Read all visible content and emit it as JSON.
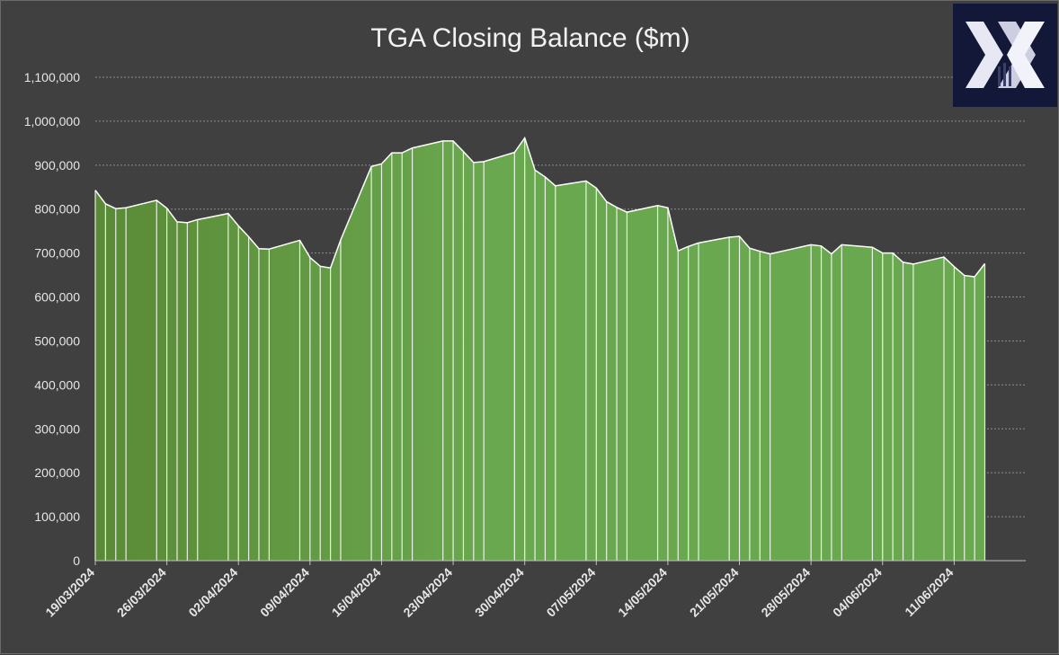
{
  "chart_data": {
    "type": "area",
    "title": "TGA Closing Balance ($m)",
    "xlabel": "",
    "ylabel": "",
    "ylim": [
      0,
      1100000
    ],
    "yticks": [
      0,
      100000,
      200000,
      300000,
      400000,
      500000,
      600000,
      700000,
      800000,
      900000,
      1000000,
      1100000
    ],
    "ytick_labels": [
      "0",
      "100,000",
      "200,000",
      "300,000",
      "400,000",
      "500,000",
      "600,000",
      "700,000",
      "800,000",
      "900,000",
      "1,000,000",
      "1,100,000"
    ],
    "xlim": [
      "2024-03-19",
      "2024-06-18"
    ],
    "xticks": [
      "2024-03-19",
      "2024-03-26",
      "2024-04-02",
      "2024-04-09",
      "2024-04-16",
      "2024-04-23",
      "2024-04-30",
      "2024-05-07",
      "2024-05-14",
      "2024-05-21",
      "2024-05-28",
      "2024-06-04",
      "2024-06-11"
    ],
    "xtick_labels": [
      "19/03/2024",
      "26/03/2024",
      "02/04/2024",
      "09/04/2024",
      "16/04/2024",
      "23/04/2024",
      "30/04/2024",
      "07/05/2024",
      "14/05/2024",
      "21/05/2024",
      "28/05/2024",
      "04/06/2024",
      "11/06/2024"
    ],
    "grid": true,
    "fill_color": "#6aa84f",
    "line_color": "#ffffff",
    "series": [
      {
        "x": [
          "2024-03-19",
          "2024-03-20",
          "2024-03-21",
          "2024-03-22",
          "2024-03-25",
          "2024-03-26",
          "2024-03-27",
          "2024-03-28",
          "2024-03-29",
          "2024-04-01",
          "2024-04-02",
          "2024-04-03",
          "2024-04-04",
          "2024-04-05",
          "2024-04-08",
          "2024-04-09",
          "2024-04-10",
          "2024-04-11",
          "2024-04-12",
          "2024-04-15",
          "2024-04-16",
          "2024-04-17",
          "2024-04-18",
          "2024-04-19",
          "2024-04-22",
          "2024-04-23",
          "2024-04-24",
          "2024-04-25",
          "2024-04-26",
          "2024-04-29",
          "2024-04-30",
          "2024-05-01",
          "2024-05-02",
          "2024-05-03",
          "2024-05-06",
          "2024-05-07",
          "2024-05-08",
          "2024-05-09",
          "2024-05-10",
          "2024-05-13",
          "2024-05-14",
          "2024-05-15",
          "2024-05-16",
          "2024-05-17",
          "2024-05-20",
          "2024-05-21",
          "2024-05-22",
          "2024-05-23",
          "2024-05-24",
          "2024-05-28",
          "2024-05-29",
          "2024-05-30",
          "2024-05-31",
          "2024-06-03",
          "2024-06-04",
          "2024-06-05",
          "2024-06-06",
          "2024-06-07",
          "2024-06-10",
          "2024-06-11",
          "2024-06-12",
          "2024-06-13",
          "2024-06-14"
        ],
        "values": [
          843000,
          812000,
          801000,
          803000,
          820000,
          802000,
          771000,
          769000,
          776000,
          790000,
          762000,
          737000,
          710000,
          709000,
          729000,
          690000,
          670000,
          666000,
          730000,
          897000,
          903000,
          928000,
          928000,
          939000,
          955000,
          955000,
          931000,
          906000,
          908000,
          929000,
          962000,
          889000,
          873000,
          853000,
          864000,
          848000,
          817000,
          804000,
          793000,
          808000,
          803000,
          705000,
          715000,
          723000,
          736000,
          738000,
          711000,
          704000,
          698000,
          719000,
          716000,
          698000,
          719000,
          713000,
          700000,
          700000,
          679000,
          675000,
          691000,
          669000,
          649000,
          646000,
          676000
        ]
      }
    ]
  },
  "logo": {
    "name": "X"
  }
}
